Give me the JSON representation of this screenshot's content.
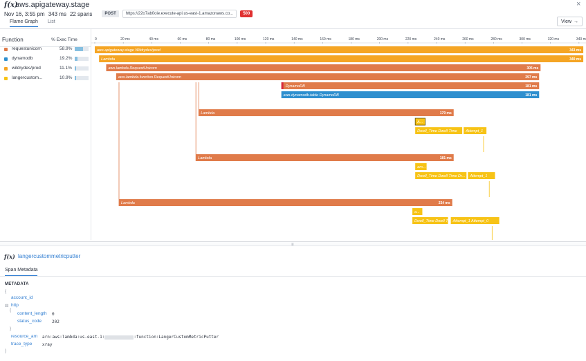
{
  "header": {
    "service_title": "aws.apigateway.stage",
    "date": "Nov 16, 3:55 pm",
    "duration": "343 ms",
    "span_count": "22 spans",
    "method": "POST",
    "url": "https://22o7ab0oie.execute-api.us-east-1.amazonaws.co...",
    "status_code": "500",
    "tabs": [
      "Flame Graph",
      "List"
    ],
    "active_tab": "Flame Graph",
    "view_label": "View",
    "view_arrow": "→",
    "close_label": "×",
    "fx_glyph": "f(x)"
  },
  "function_table": {
    "column_function": "Function",
    "column_exec": "% Exec Time",
    "rows": [
      {
        "name": "requestunicorn",
        "percent": "58.9%",
        "fraction": 0.589,
        "color": "#e07b4a"
      },
      {
        "name": "dynamodb",
        "percent": "19.2%",
        "fraction": 0.192,
        "color": "#2e8fcf"
      },
      {
        "name": "wildrydes/prod",
        "percent": "11.1%",
        "fraction": 0.111,
        "color": "#f5a524"
      },
      {
        "name": "langercustom...",
        "percent": "10.9%",
        "fraction": 0.109,
        "color": "#f7c316"
      }
    ]
  },
  "timeline": {
    "ticks": [
      "0",
      "20 ms",
      "40 ms",
      "60 ms",
      "80 ms",
      "100 ms",
      "120 ms",
      "140 ms",
      "160 ms",
      "180 ms",
      "200 ms",
      "220 ms",
      "240 ms",
      "260 ms",
      "280 ms",
      "300 ms",
      "320 ms",
      "340 ms"
    ],
    "tick_values": [
      0,
      20,
      40,
      60,
      80,
      100,
      120,
      140,
      160,
      180,
      200,
      220,
      240,
      260,
      280,
      300,
      320,
      340
    ],
    "spans": [
      {
        "label": "aws.apigateway.stage Wildrydes/prod",
        "duration": "343 ms",
        "start": 0,
        "end": 343,
        "row": 0,
        "color": "#f5a524"
      },
      {
        "label": "Lambda",
        "duration": "340 ms",
        "start": 3,
        "end": 343,
        "row": 1,
        "color": "#f5a524"
      },
      {
        "label": "aws.lambda RequestUnicorn",
        "duration": "305 ms",
        "start": 8,
        "end": 313,
        "row": 2,
        "color": "#e07b4a"
      },
      {
        "label": "aws.lambda.function RequestUnicorn",
        "duration": "297 ms",
        "start": 15,
        "end": 312,
        "row": 3,
        "color": "#e07b4a"
      },
      {
        "label": "DynamoDB",
        "duration": "181 ms",
        "start": 131,
        "end": 312,
        "row": 4,
        "color": "#e07b4a"
      },
      {
        "label": "aws.dynamodb.table DynamoDB",
        "duration": "181 ms",
        "start": 131,
        "end": 312,
        "row": 5,
        "color": "#2e8fcf"
      },
      {
        "label": "Lambda",
        "duration": "179 ms",
        "start": 73,
        "end": 252,
        "row": 7,
        "color": "#e07b4a"
      },
      {
        "label": "A...",
        "duration": "",
        "start": 225,
        "end": 232,
        "row": 8,
        "color": "#f7c316"
      },
      {
        "label": "Dwell_Time Dwell Time",
        "duration": "",
        "start": 225,
        "end": 258,
        "row": 9,
        "color": "#f7c316"
      },
      {
        "label": "Attempt_1",
        "duration": "",
        "start": 259,
        "end": 275,
        "row": 9,
        "color": "#f7c316"
      },
      {
        "label": "Lambda",
        "duration": "181 ms",
        "start": 71,
        "end": 252,
        "row": 12,
        "color": "#e07b4a"
      },
      {
        "label": "am...",
        "duration": "",
        "start": 225,
        "end": 233,
        "row": 13,
        "color": "#f7c316"
      },
      {
        "label": "Dwell_Time Dwell Time  Dr...",
        "duration": "",
        "start": 225,
        "end": 261,
        "row": 14,
        "color": "#f7c316"
      },
      {
        "label": "Attempt_1",
        "duration": "",
        "start": 262,
        "end": 281,
        "row": 14,
        "color": "#f7c316"
      },
      {
        "label": "Lambda",
        "duration": "234 ms",
        "start": 17,
        "end": 251,
        "row": 17,
        "color": "#e07b4a"
      },
      {
        "label": "a...",
        "duration": "",
        "start": 223,
        "end": 230,
        "row": 18,
        "color": "#f7c316"
      },
      {
        "label": "Dwell_Time Dwell Time",
        "duration": "",
        "start": 223,
        "end": 248,
        "row": 19,
        "color": "#f7c316"
      },
      {
        "label": "Attempt_1  Attempt_0",
        "duration": "",
        "start": 250,
        "end": 284,
        "row": 19,
        "color": "#f7c316"
      }
    ]
  },
  "detail": {
    "fx_glyph": "f(x)",
    "title": "langercustommetricputter",
    "tab": "Span Metadata",
    "heading": "METADATA",
    "open_brace": "{",
    "close_brace": "}",
    "toggle": "⊟",
    "fields": {
      "account_id_key": "account_id",
      "http_key": "http",
      "content_length_key": "content_length",
      "content_length_val": "0",
      "status_code_key": "status_code",
      "status_code_val": "202",
      "resource_arn_key": "resource_arn",
      "resource_arn_prefix": "arn:aws:lambda:us-east-1:",
      "resource_arn_suffix": ":function:LangerCustomMetricPutter",
      "trace_type_key": "trace_type",
      "trace_type_val": "xray"
    }
  }
}
